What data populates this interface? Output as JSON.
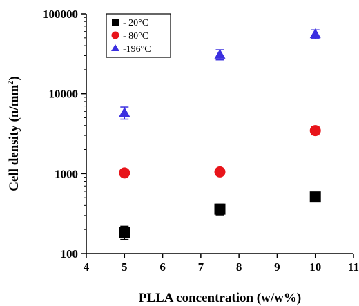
{
  "chart_data": {
    "type": "scatter",
    "xlabel": "PLLA concentration (w/w%)",
    "ylabel": "Cell density (n/mm²)",
    "ylabel_parts": {
      "main": "Cell density (n/mm",
      "sup": "2",
      "end": ")"
    },
    "y_scale": "log",
    "xlim": [
      4,
      11
    ],
    "ylim": [
      100,
      100000
    ],
    "x_ticks": [
      "4",
      "5",
      "6",
      "7",
      "8",
      "9",
      "10",
      "11"
    ],
    "y_ticks": [
      "100",
      "1000",
      "10000",
      "100000"
    ],
    "grid": false,
    "legend": {
      "placement": "top-left"
    },
    "series": [
      {
        "name": "- 20°C",
        "marker": "square",
        "color": "#000000",
        "x": [
          5,
          7.5,
          10
        ],
        "y": [
          185,
          360,
          510
        ],
        "err": [
          35,
          55,
          50
        ]
      },
      {
        "name": "- 80°C",
        "marker": "circle",
        "color": "#e8141a",
        "x": [
          5,
          7.5,
          10
        ],
        "y": [
          1020,
          1050,
          3450
        ],
        "err": [
          60,
          60,
          400
        ]
      },
      {
        "name": "-196°C",
        "marker": "triangle",
        "color": "#3b2fe0",
        "x": [
          5,
          7.5,
          10
        ],
        "y": [
          5800,
          31000,
          56000
        ],
        "err": [
          1000,
          4500,
          7000
        ]
      }
    ]
  }
}
